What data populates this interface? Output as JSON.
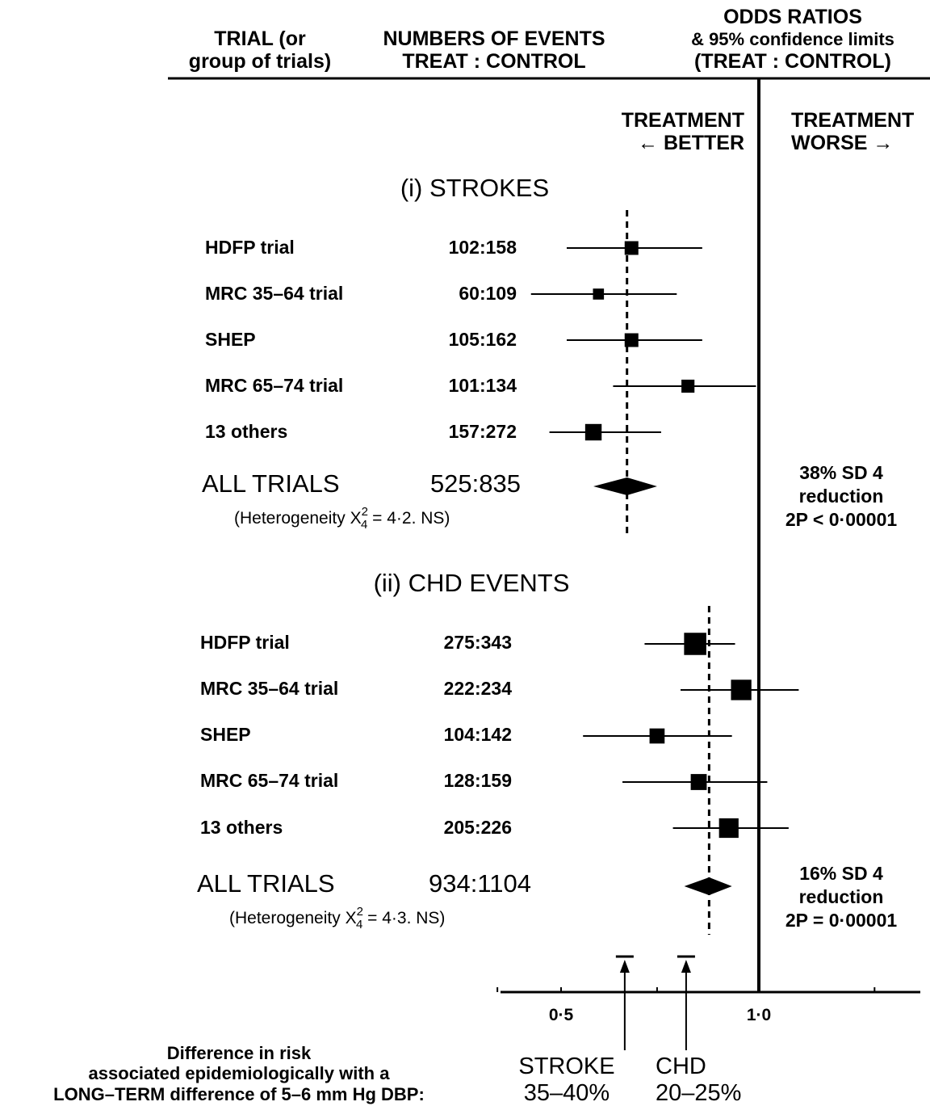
{
  "header": {
    "trial_l1": "TRIAL (or",
    "trial_l2": "group of trials)",
    "events_l1": "NUMBERS OF EVENTS",
    "events_l2": "TREAT : CONTROL",
    "or_l1": "ODDS RATIOS",
    "or_l2": "& 95% confidence limits",
    "or_l3": "(TREAT : CONTROL)",
    "better_l1": "TREATMENT",
    "better_l2": "← BETTER",
    "worse_l1": "TREATMENT",
    "worse_l2": "WORSE →"
  },
  "chart_data": {
    "type": "forest",
    "x_scale": "log",
    "xlim": [
      0.3,
      2.0
    ],
    "x_ticks": [
      0.5,
      1.0
    ],
    "x_tick_labels": [
      "0·5",
      "1·0"
    ],
    "null_value": 1.0,
    "sections": [
      {
        "title": "(i) STROKES",
        "pooled_dashed_line": 0.63,
        "trials": [
          {
            "name": "HDFP trial",
            "events": "102:158",
            "or": 0.64,
            "lo": 0.51,
            "hi": 0.82
          },
          {
            "name": "MRC 35–64 trial",
            "events": "60:109",
            "or": 0.57,
            "lo": 0.45,
            "hi": 0.75
          },
          {
            "name": "SHEP",
            "events": "105:162",
            "or": 0.64,
            "lo": 0.51,
            "hi": 0.82
          },
          {
            "name": "MRC 65–74 trial",
            "events": "101:134",
            "or": 0.78,
            "lo": 0.6,
            "hi": 0.99
          },
          {
            "name": "13 others",
            "events": "157:272",
            "or": 0.56,
            "lo": 0.48,
            "hi": 0.71
          }
        ],
        "overall": {
          "name": "ALL TRIALS",
          "events": "525:835",
          "or": 0.63,
          "lo": 0.56,
          "hi": 0.7
        },
        "heterogeneity_prefix": "(Heterogeneity X",
        "heterogeneity_sup": "2",
        "heterogeneity_sub": "4",
        "heterogeneity_suffix": " = 4·2. NS)",
        "summary_l1": "38% SD 4",
        "summary_l2": "reduction",
        "summary_l3": "2P < 0·00001"
      },
      {
        "title": "(ii) CHD EVENTS",
        "pooled_dashed_line": 0.84,
        "trials": [
          {
            "name": "HDFP trial",
            "events": "275:343",
            "or": 0.8,
            "lo": 0.67,
            "hi": 0.92
          },
          {
            "name": "MRC 35–64 trial",
            "events": "222:234",
            "or": 0.94,
            "lo": 0.76,
            "hi": 1.15
          },
          {
            "name": "SHEP",
            "events": "104:142",
            "or": 0.7,
            "lo": 0.54,
            "hi": 0.91
          },
          {
            "name": "MRC 65–74 trial",
            "events": "128:159",
            "or": 0.81,
            "lo": 0.62,
            "hi": 1.03
          },
          {
            "name": "13 others",
            "events": "205:226",
            "or": 0.9,
            "lo": 0.74,
            "hi": 1.11
          }
        ],
        "overall": {
          "name": "ALL TRIALS",
          "events": "934:1104",
          "or": 0.84,
          "lo": 0.77,
          "hi": 0.91
        },
        "heterogeneity_prefix": "(Heterogeneity X",
        "heterogeneity_sup": "2",
        "heterogeneity_sub": "4",
        "heterogeneity_suffix": " = 4·3. NS)",
        "summary_l1": "16% SD 4",
        "summary_l2": "reduction",
        "summary_l3": "2P = 0·00001"
      }
    ],
    "expected_markers": [
      {
        "label": "STROKE",
        "range": "35–40%",
        "or_low": 0.6,
        "or_high": 0.65
      },
      {
        "label": "CHD",
        "range": "20–25%",
        "or_low": 0.75,
        "or_high": 0.8
      }
    ]
  },
  "footer": {
    "l1": "Difference in risk",
    "l2": "associated epidemiologically with a",
    "l3": "LONG–TERM difference of 5–6 mm Hg DBP:"
  }
}
